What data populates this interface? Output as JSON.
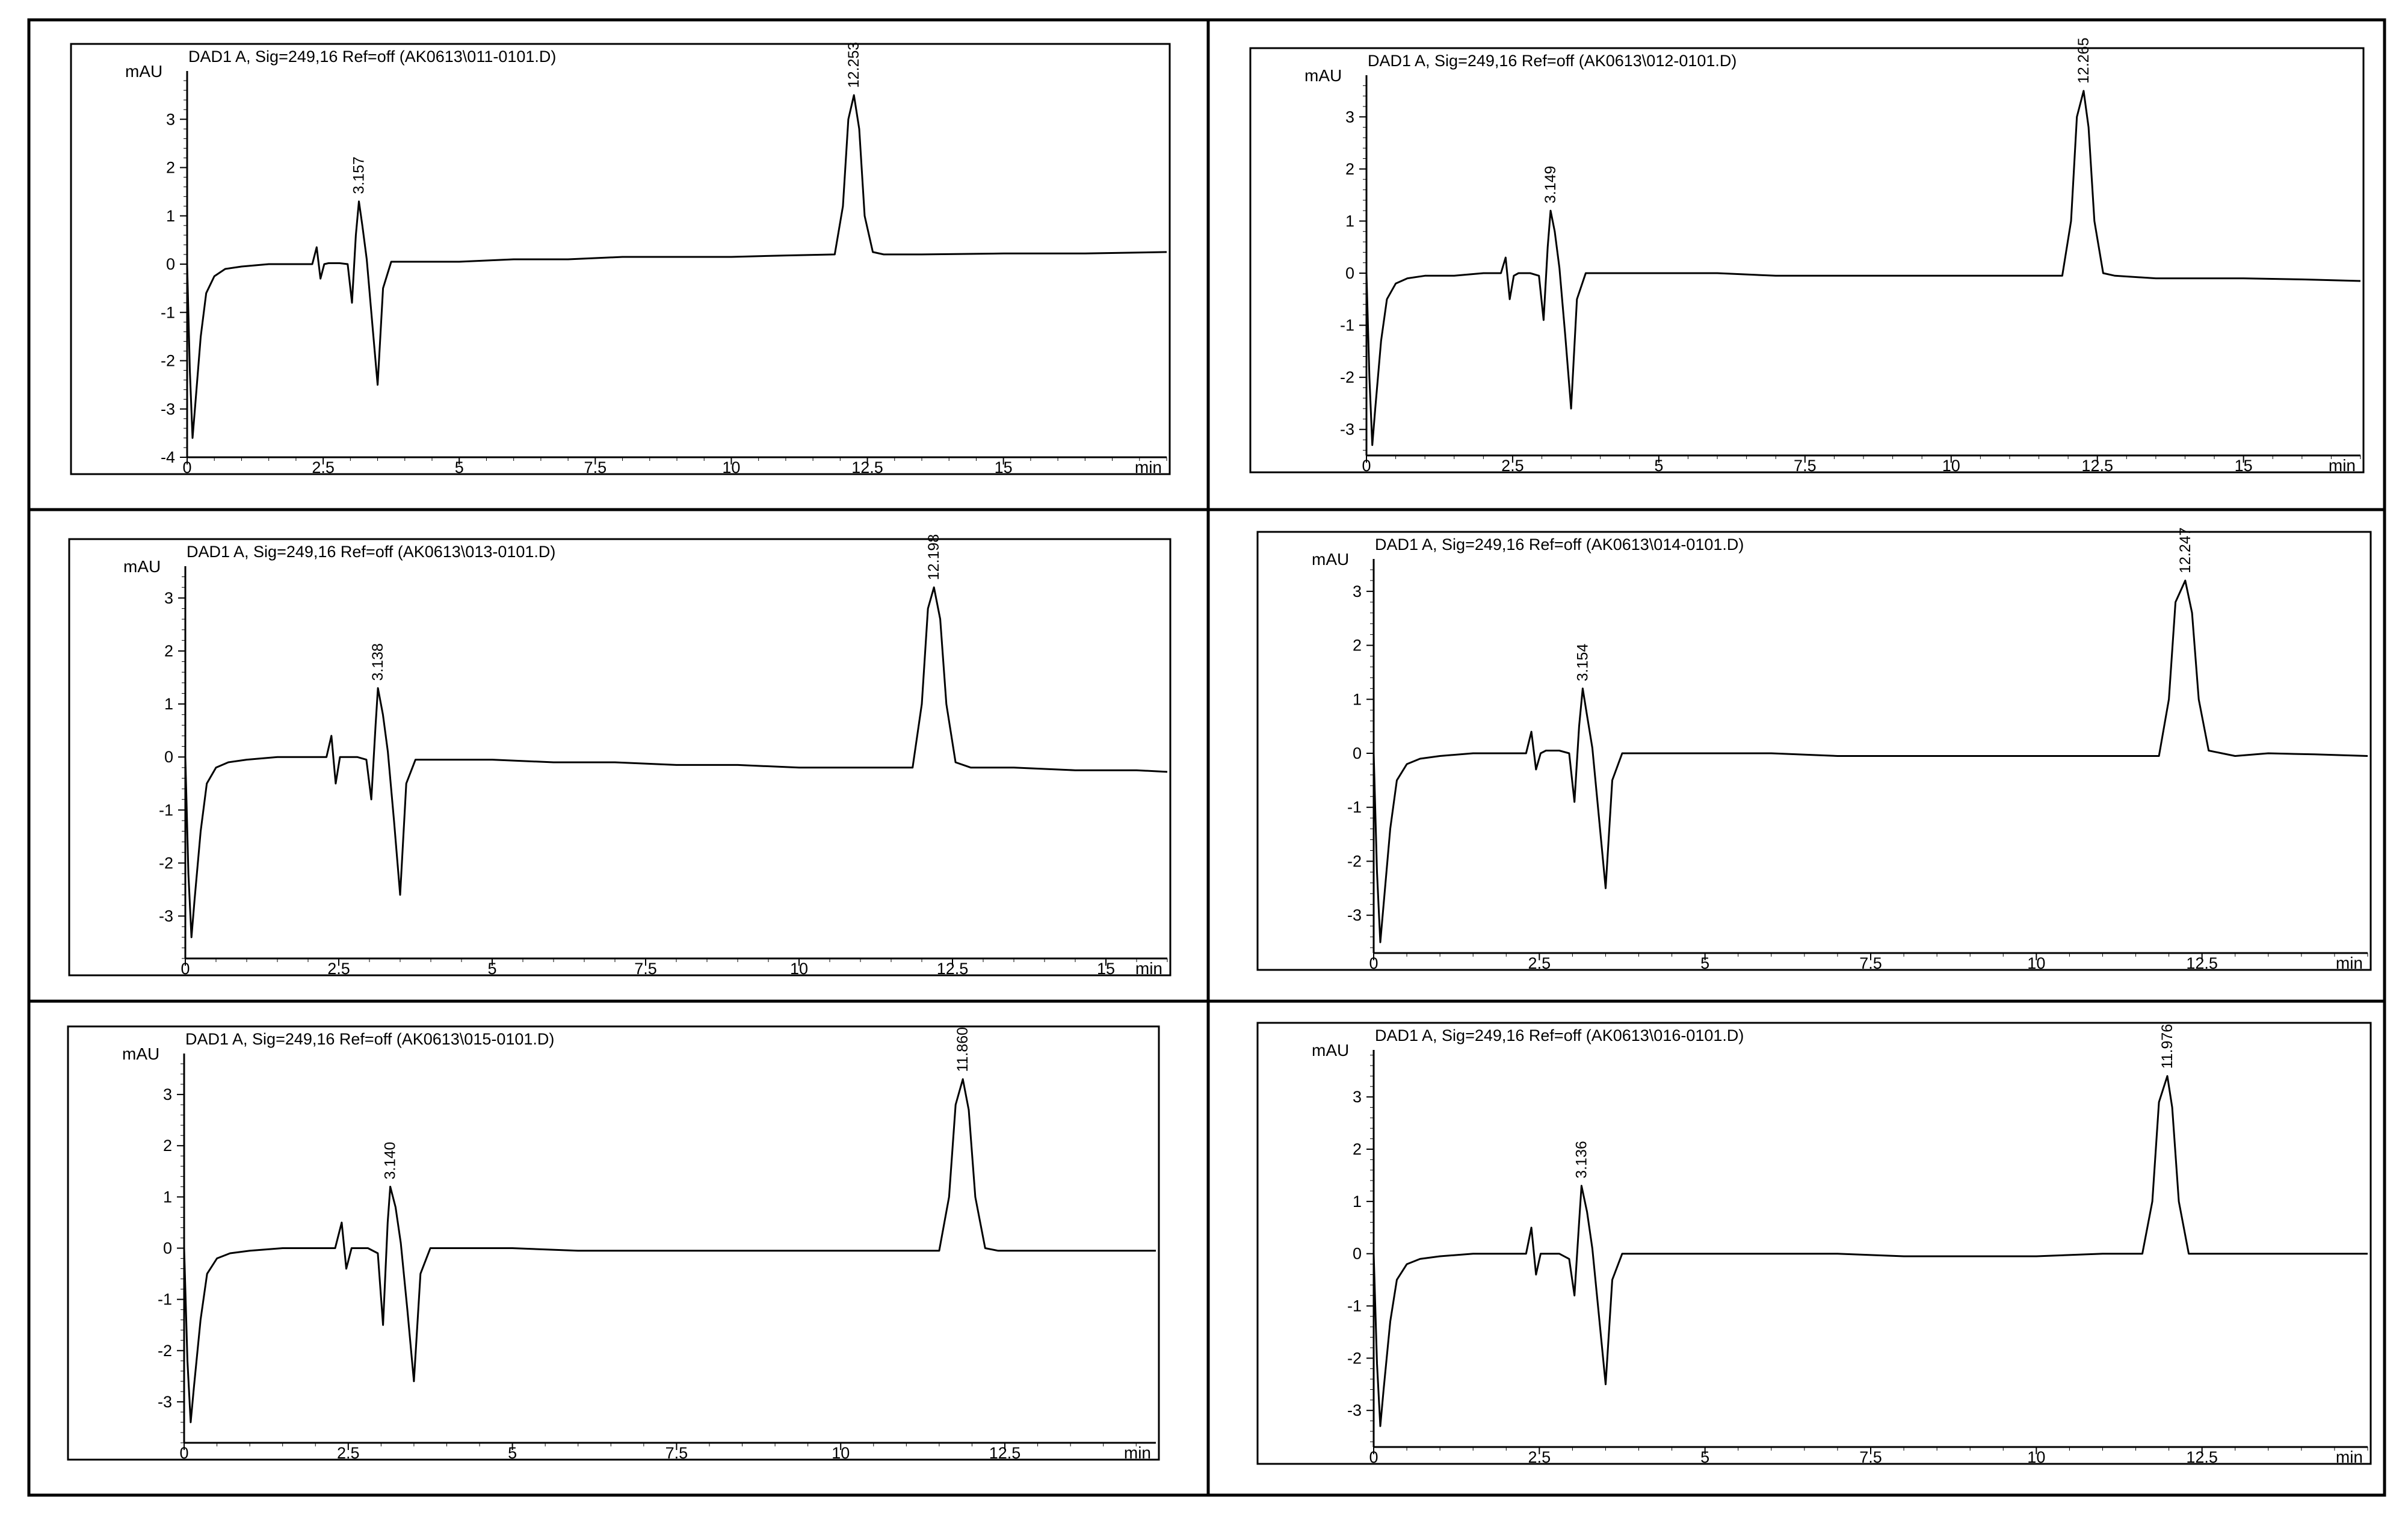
{
  "chart_data": [
    {
      "type": "line",
      "title": "DAD1 A, Sig=249,16 Ref=off (AK0613\\011-0101.D)",
      "ylabel": "mAU",
      "xlabel": "min",
      "xlim": [
        0,
        18
      ],
      "ylim": [
        -4,
        4
      ],
      "xticks": [
        0,
        2.5,
        5,
        7.5,
        10,
        12.5,
        15
      ],
      "yticks": [
        -4,
        -3,
        -2,
        -1,
        0,
        1,
        2,
        3
      ],
      "peaks": [
        {
          "label": "3.157",
          "x": 3.157,
          "y": 1.3
        },
        {
          "label": "12.253",
          "x": 12.253,
          "y": 3.5
        }
      ],
      "series": [
        {
          "x": [
            0,
            0.05,
            0.1,
            0.15,
            0.25,
            0.35,
            0.5,
            0.7,
            1.0,
            1.5,
            2.0,
            2.3,
            2.38,
            2.45,
            2.52,
            2.6,
            2.8,
            2.95,
            3.03,
            3.1,
            3.157,
            3.22,
            3.3,
            3.4,
            3.5,
            3.6,
            3.75,
            4.0,
            5,
            6,
            7,
            8,
            9,
            10,
            11,
            11.9,
            12.05,
            12.15,
            12.253,
            12.35,
            12.45,
            12.6,
            12.8,
            13.5,
            15,
            16.5,
            18
          ],
          "y": [
            0,
            -2.2,
            -3.6,
            -2.9,
            -1.5,
            -0.6,
            -0.25,
            -0.1,
            -0.05,
            0,
            0,
            0,
            0.35,
            -0.3,
            0,
            0.02,
            0.02,
            0,
            -0.8,
            0.6,
            1.3,
            0.8,
            0.1,
            -1.2,
            -2.5,
            -0.5,
            0.05,
            0.05,
            0.05,
            0.1,
            0.1,
            0.15,
            0.15,
            0.15,
            0.18,
            0.2,
            1.2,
            3.0,
            3.5,
            2.8,
            1.0,
            0.25,
            0.2,
            0.2,
            0.22,
            0.22,
            0.25
          ]
        }
      ]
    },
    {
      "type": "line",
      "title": "DAD1 A, Sig=249,16 Ref=off (AK0613\\012-0101.D)",
      "ylabel": "mAU",
      "xlabel": "min",
      "xlim": [
        0,
        17
      ],
      "ylim": [
        -3.5,
        3.8
      ],
      "xticks": [
        0,
        2.5,
        5,
        7.5,
        10,
        12.5,
        15
      ],
      "yticks": [
        -3,
        -2,
        -1,
        0,
        1,
        2,
        3
      ],
      "peaks": [
        {
          "label": "3.149",
          "x": 3.149,
          "y": 1.2
        },
        {
          "label": "12.265",
          "x": 12.265,
          "y": 3.5
        }
      ],
      "series": [
        {
          "x": [
            0,
            0.05,
            0.1,
            0.15,
            0.25,
            0.35,
            0.5,
            0.7,
            1.0,
            1.5,
            2.0,
            2.3,
            2.38,
            2.45,
            2.52,
            2.6,
            2.8,
            2.95,
            3.03,
            3.1,
            3.149,
            3.22,
            3.3,
            3.4,
            3.5,
            3.6,
            3.75,
            4.0,
            5,
            6,
            7,
            8,
            9,
            10,
            11,
            11.9,
            12.05,
            12.15,
            12.265,
            12.35,
            12.45,
            12.6,
            12.8,
            13.5,
            15,
            16,
            17
          ],
          "y": [
            0,
            -2.0,
            -3.3,
            -2.6,
            -1.3,
            -0.5,
            -0.2,
            -0.1,
            -0.05,
            -0.05,
            0,
            0,
            0.3,
            -0.5,
            -0.05,
            0,
            0,
            -0.05,
            -0.9,
            0.5,
            1.2,
            0.8,
            0.1,
            -1.2,
            -2.6,
            -0.5,
            0,
            0,
            0,
            0,
            -0.05,
            -0.05,
            -0.05,
            -0.05,
            -0.05,
            -0.05,
            1.0,
            3.0,
            3.5,
            2.8,
            1.0,
            0,
            -0.05,
            -0.1,
            -0.1,
            -0.12,
            -0.15
          ]
        }
      ]
    },
    {
      "type": "line",
      "title": "DAD1 A, Sig=249,16 Ref=off (AK0613\\013-0101.D)",
      "ylabel": "mAU",
      "xlabel": "min",
      "xlim": [
        0,
        16
      ],
      "ylim": [
        -3.8,
        3.6
      ],
      "xticks": [
        0,
        2.5,
        5,
        7.5,
        10,
        12.5,
        15
      ],
      "yticks": [
        -3,
        -2,
        -1,
        0,
        1,
        2,
        3
      ],
      "peaks": [
        {
          "label": "3.138",
          "x": 3.138,
          "y": 1.3
        },
        {
          "label": "12.198",
          "x": 12.198,
          "y": 3.2
        }
      ],
      "series": [
        {
          "x": [
            0,
            0.05,
            0.1,
            0.15,
            0.25,
            0.35,
            0.5,
            0.7,
            1.0,
            1.5,
            2.0,
            2.3,
            2.38,
            2.45,
            2.52,
            2.6,
            2.8,
            2.95,
            3.03,
            3.1,
            3.138,
            3.22,
            3.3,
            3.4,
            3.5,
            3.6,
            3.75,
            4.0,
            5,
            6,
            7,
            8,
            9,
            10,
            11,
            11.85,
            12.0,
            12.1,
            12.198,
            12.3,
            12.4,
            12.55,
            12.8,
            13.5,
            14.5,
            15.5,
            16
          ],
          "y": [
            0,
            -2.2,
            -3.4,
            -2.7,
            -1.4,
            -0.5,
            -0.2,
            -0.1,
            -0.05,
            0,
            0,
            0,
            0.4,
            -0.5,
            0,
            0,
            0,
            -0.05,
            -0.8,
            0.6,
            1.3,
            0.8,
            0.1,
            -1.2,
            -2.6,
            -0.5,
            -0.05,
            -0.05,
            -0.05,
            -0.1,
            -0.1,
            -0.15,
            -0.15,
            -0.2,
            -0.2,
            -0.2,
            1.0,
            2.8,
            3.2,
            2.6,
            1.0,
            -0.1,
            -0.2,
            -0.2,
            -0.25,
            -0.25,
            -0.28
          ]
        }
      ]
    },
    {
      "type": "line",
      "title": "DAD1 A, Sig=249,16 Ref=off (AK0613\\014-0101.D)",
      "ylabel": "mAU",
      "xlabel": "min",
      "xlim": [
        0,
        15
      ],
      "ylim": [
        -3.7,
        3.6
      ],
      "xticks": [
        0,
        2.5,
        5,
        7.5,
        10,
        12.5
      ],
      "yticks": [
        -3,
        -2,
        -1,
        0,
        1,
        2,
        3
      ],
      "peaks": [
        {
          "label": "3.154",
          "x": 3.154,
          "y": 1.2
        },
        {
          "label": "12.247",
          "x": 12.247,
          "y": 3.2
        }
      ],
      "series": [
        {
          "x": [
            0,
            0.05,
            0.1,
            0.15,
            0.25,
            0.35,
            0.5,
            0.7,
            1.0,
            1.5,
            2.0,
            2.3,
            2.38,
            2.45,
            2.52,
            2.6,
            2.8,
            2.95,
            3.03,
            3.1,
            3.154,
            3.22,
            3.3,
            3.4,
            3.5,
            3.6,
            3.75,
            4.0,
            5,
            6,
            7,
            8,
            9,
            10,
            11,
            11.85,
            12.0,
            12.1,
            12.247,
            12.35,
            12.45,
            12.6,
            12.8,
            13.0,
            13.5,
            14.2,
            15
          ],
          "y": [
            0,
            -2.2,
            -3.5,
            -2.8,
            -1.4,
            -0.5,
            -0.2,
            -0.1,
            -0.05,
            0,
            0,
            0,
            0.4,
            -0.3,
            0,
            0.05,
            0.05,
            0,
            -0.9,
            0.5,
            1.2,
            0.7,
            0.1,
            -1.2,
            -2.5,
            -0.5,
            0,
            0,
            0,
            0,
            -0.05,
            -0.05,
            -0.05,
            -0.05,
            -0.05,
            -0.05,
            1.0,
            2.8,
            3.2,
            2.6,
            1.0,
            0.05,
            0,
            -0.05,
            0,
            -0.02,
            -0.05
          ]
        }
      ]
    },
    {
      "type": "line",
      "title": "DAD1 A, Sig=249,16 Ref=off (AK0613\\015-0101.D)",
      "ylabel": "mAU",
      "xlabel": "min",
      "xlim": [
        0,
        14.8
      ],
      "ylim": [
        -3.8,
        3.8
      ],
      "xticks": [
        0,
        2.5,
        5,
        7.5,
        10,
        12.5
      ],
      "yticks": [
        -3,
        -2,
        -1,
        0,
        1,
        2,
        3
      ],
      "peaks": [
        {
          "label": "3.140",
          "x": 3.14,
          "y": 1.2
        },
        {
          "label": "11.860",
          "x": 11.86,
          "y": 3.3
        }
      ],
      "series": [
        {
          "x": [
            0,
            0.05,
            0.1,
            0.15,
            0.25,
            0.35,
            0.5,
            0.7,
            1.0,
            1.5,
            2.0,
            2.3,
            2.4,
            2.47,
            2.55,
            2.62,
            2.8,
            2.95,
            3.03,
            3.1,
            3.14,
            3.22,
            3.3,
            3.4,
            3.5,
            3.6,
            3.75,
            4.0,
            5,
            6,
            7,
            8,
            9,
            10,
            11,
            11.5,
            11.65,
            11.75,
            11.86,
            11.95,
            12.05,
            12.2,
            12.4,
            13.0,
            13.8,
            14.8
          ],
          "y": [
            0,
            -2.2,
            -3.4,
            -2.7,
            -1.4,
            -0.5,
            -0.2,
            -0.1,
            -0.05,
            0,
            0,
            0,
            0.5,
            -0.4,
            0,
            0,
            0,
            -0.1,
            -1.5,
            0.5,
            1.2,
            0.8,
            0.1,
            -1.2,
            -2.6,
            -0.5,
            0,
            0,
            0,
            -0.05,
            -0.05,
            -0.05,
            -0.05,
            -0.05,
            -0.05,
            -0.05,
            1.0,
            2.8,
            3.3,
            2.7,
            1.0,
            0,
            -0.05,
            -0.05,
            -0.05,
            -0.05
          ]
        }
      ]
    },
    {
      "type": "line",
      "title": "DAD1 A, Sig=249,16 Ref=off (AK0613\\016-0101.D)",
      "ylabel": "mAU",
      "xlabel": "min",
      "xlim": [
        0,
        15
      ],
      "ylim": [
        -3.7,
        3.9
      ],
      "xticks": [
        0,
        2.5,
        5,
        7.5,
        10,
        12.5
      ],
      "yticks": [
        -3,
        -2,
        -1,
        0,
        1,
        2,
        3
      ],
      "peaks": [
        {
          "label": "3.136",
          "x": 3.136,
          "y": 1.3
        },
        {
          "label": "11.976",
          "x": 11.976,
          "y": 3.4
        }
      ],
      "series": [
        {
          "x": [
            0,
            0.05,
            0.1,
            0.15,
            0.25,
            0.35,
            0.5,
            0.7,
            1.0,
            1.5,
            2.0,
            2.3,
            2.38,
            2.45,
            2.52,
            2.6,
            2.8,
            2.95,
            3.03,
            3.1,
            3.136,
            3.22,
            3.3,
            3.4,
            3.5,
            3.6,
            3.75,
            4.0,
            5,
            6,
            7,
            8,
            9,
            10,
            11,
            11.6,
            11.75,
            11.85,
            11.976,
            12.05,
            12.15,
            12.3,
            12.5,
            13.0,
            14.0,
            15
          ],
          "y": [
            0,
            -2.1,
            -3.3,
            -2.6,
            -1.3,
            -0.5,
            -0.2,
            -0.1,
            -0.05,
            0,
            0,
            0,
            0.5,
            -0.4,
            0,
            0,
            0,
            -0.1,
            -0.8,
            0.6,
            1.3,
            0.8,
            0.1,
            -1.2,
            -2.5,
            -0.5,
            0,
            0,
            0,
            0,
            0,
            -0.05,
            -0.05,
            -0.05,
            0,
            0,
            1.0,
            2.9,
            3.4,
            2.8,
            1.0,
            0,
            0,
            0,
            0,
            0
          ]
        }
      ]
    }
  ]
}
